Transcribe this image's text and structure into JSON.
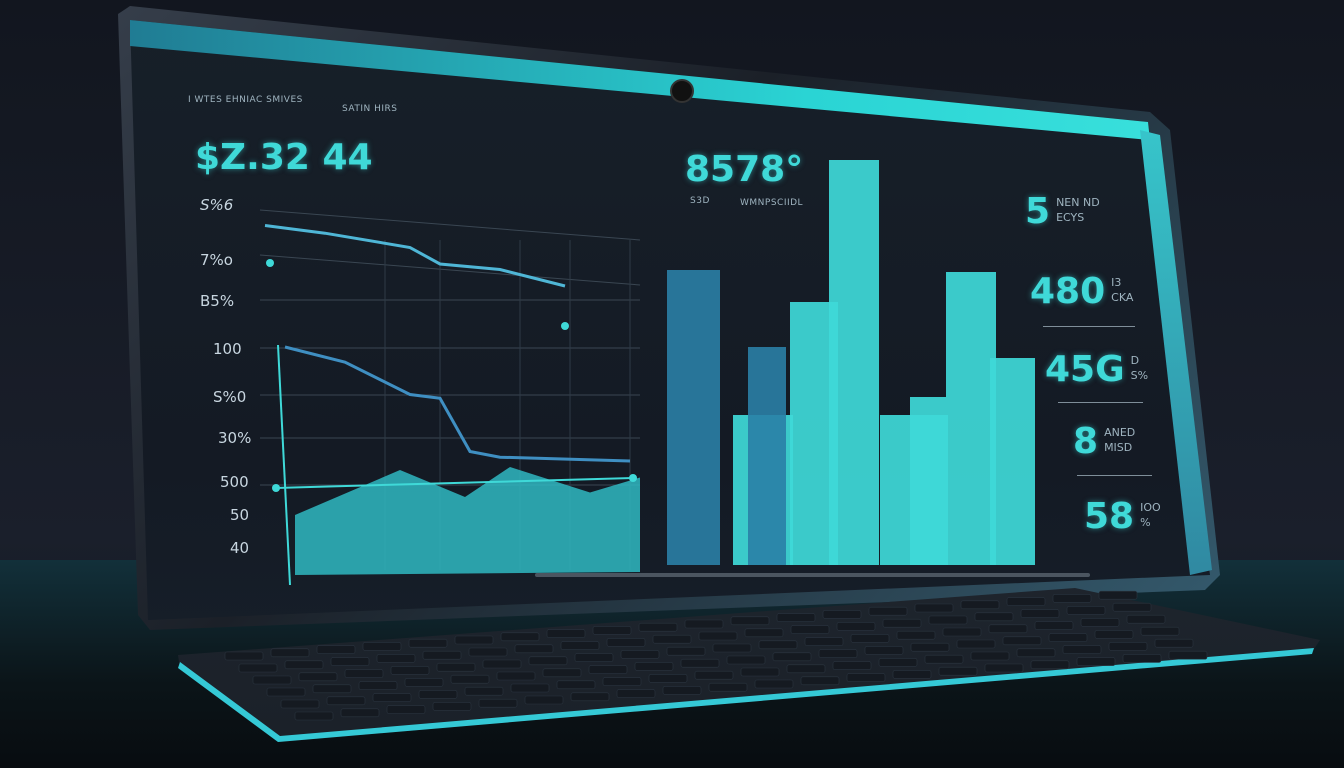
{
  "header": {
    "caption_left": "I WTES EHNIAC SMIVES",
    "caption_mid": "SATIN  HIRS"
  },
  "main_value": "$Z.32 44",
  "center_value": "8578°",
  "center_sub_left": "S3D",
  "center_sub_right": "WMNPSCIIDL",
  "y_axis_labels": [
    "S%6",
    "7%o",
    "B5%",
    "100",
    "S%0",
    "30%",
    "500",
    "50",
    "40"
  ],
  "stats": [
    {
      "value": "5",
      "label_top": "NEN   ND",
      "label_bottom": "ECYS"
    },
    {
      "value": "480",
      "label_top": "I3",
      "label_bottom": "CKA"
    },
    {
      "value": "45G",
      "label_top": "D",
      "label_bottom": "S%"
    },
    {
      "value": "8",
      "label_top": "ANED",
      "label_bottom": "MISD"
    },
    {
      "value": "58",
      "label_top": "IOO",
      "label_bottom": "%"
    }
  ],
  "colors": {
    "accent": "#3fd9d8",
    "accent_dark": "#2a7fa6",
    "background": "#141a24"
  },
  "chart_data": {
    "type": "bar",
    "bars_relative_height": [
      295,
      150,
      218,
      263,
      405,
      150,
      168,
      293,
      207
    ],
    "line_series_relative": [
      [
        95,
        88,
        75,
        60,
        55,
        40
      ],
      [
        70,
        62,
        45,
        43,
        15,
        12,
        10
      ]
    ],
    "area_series_relative": [
      0,
      30,
      12,
      32,
      15,
      25
    ]
  }
}
